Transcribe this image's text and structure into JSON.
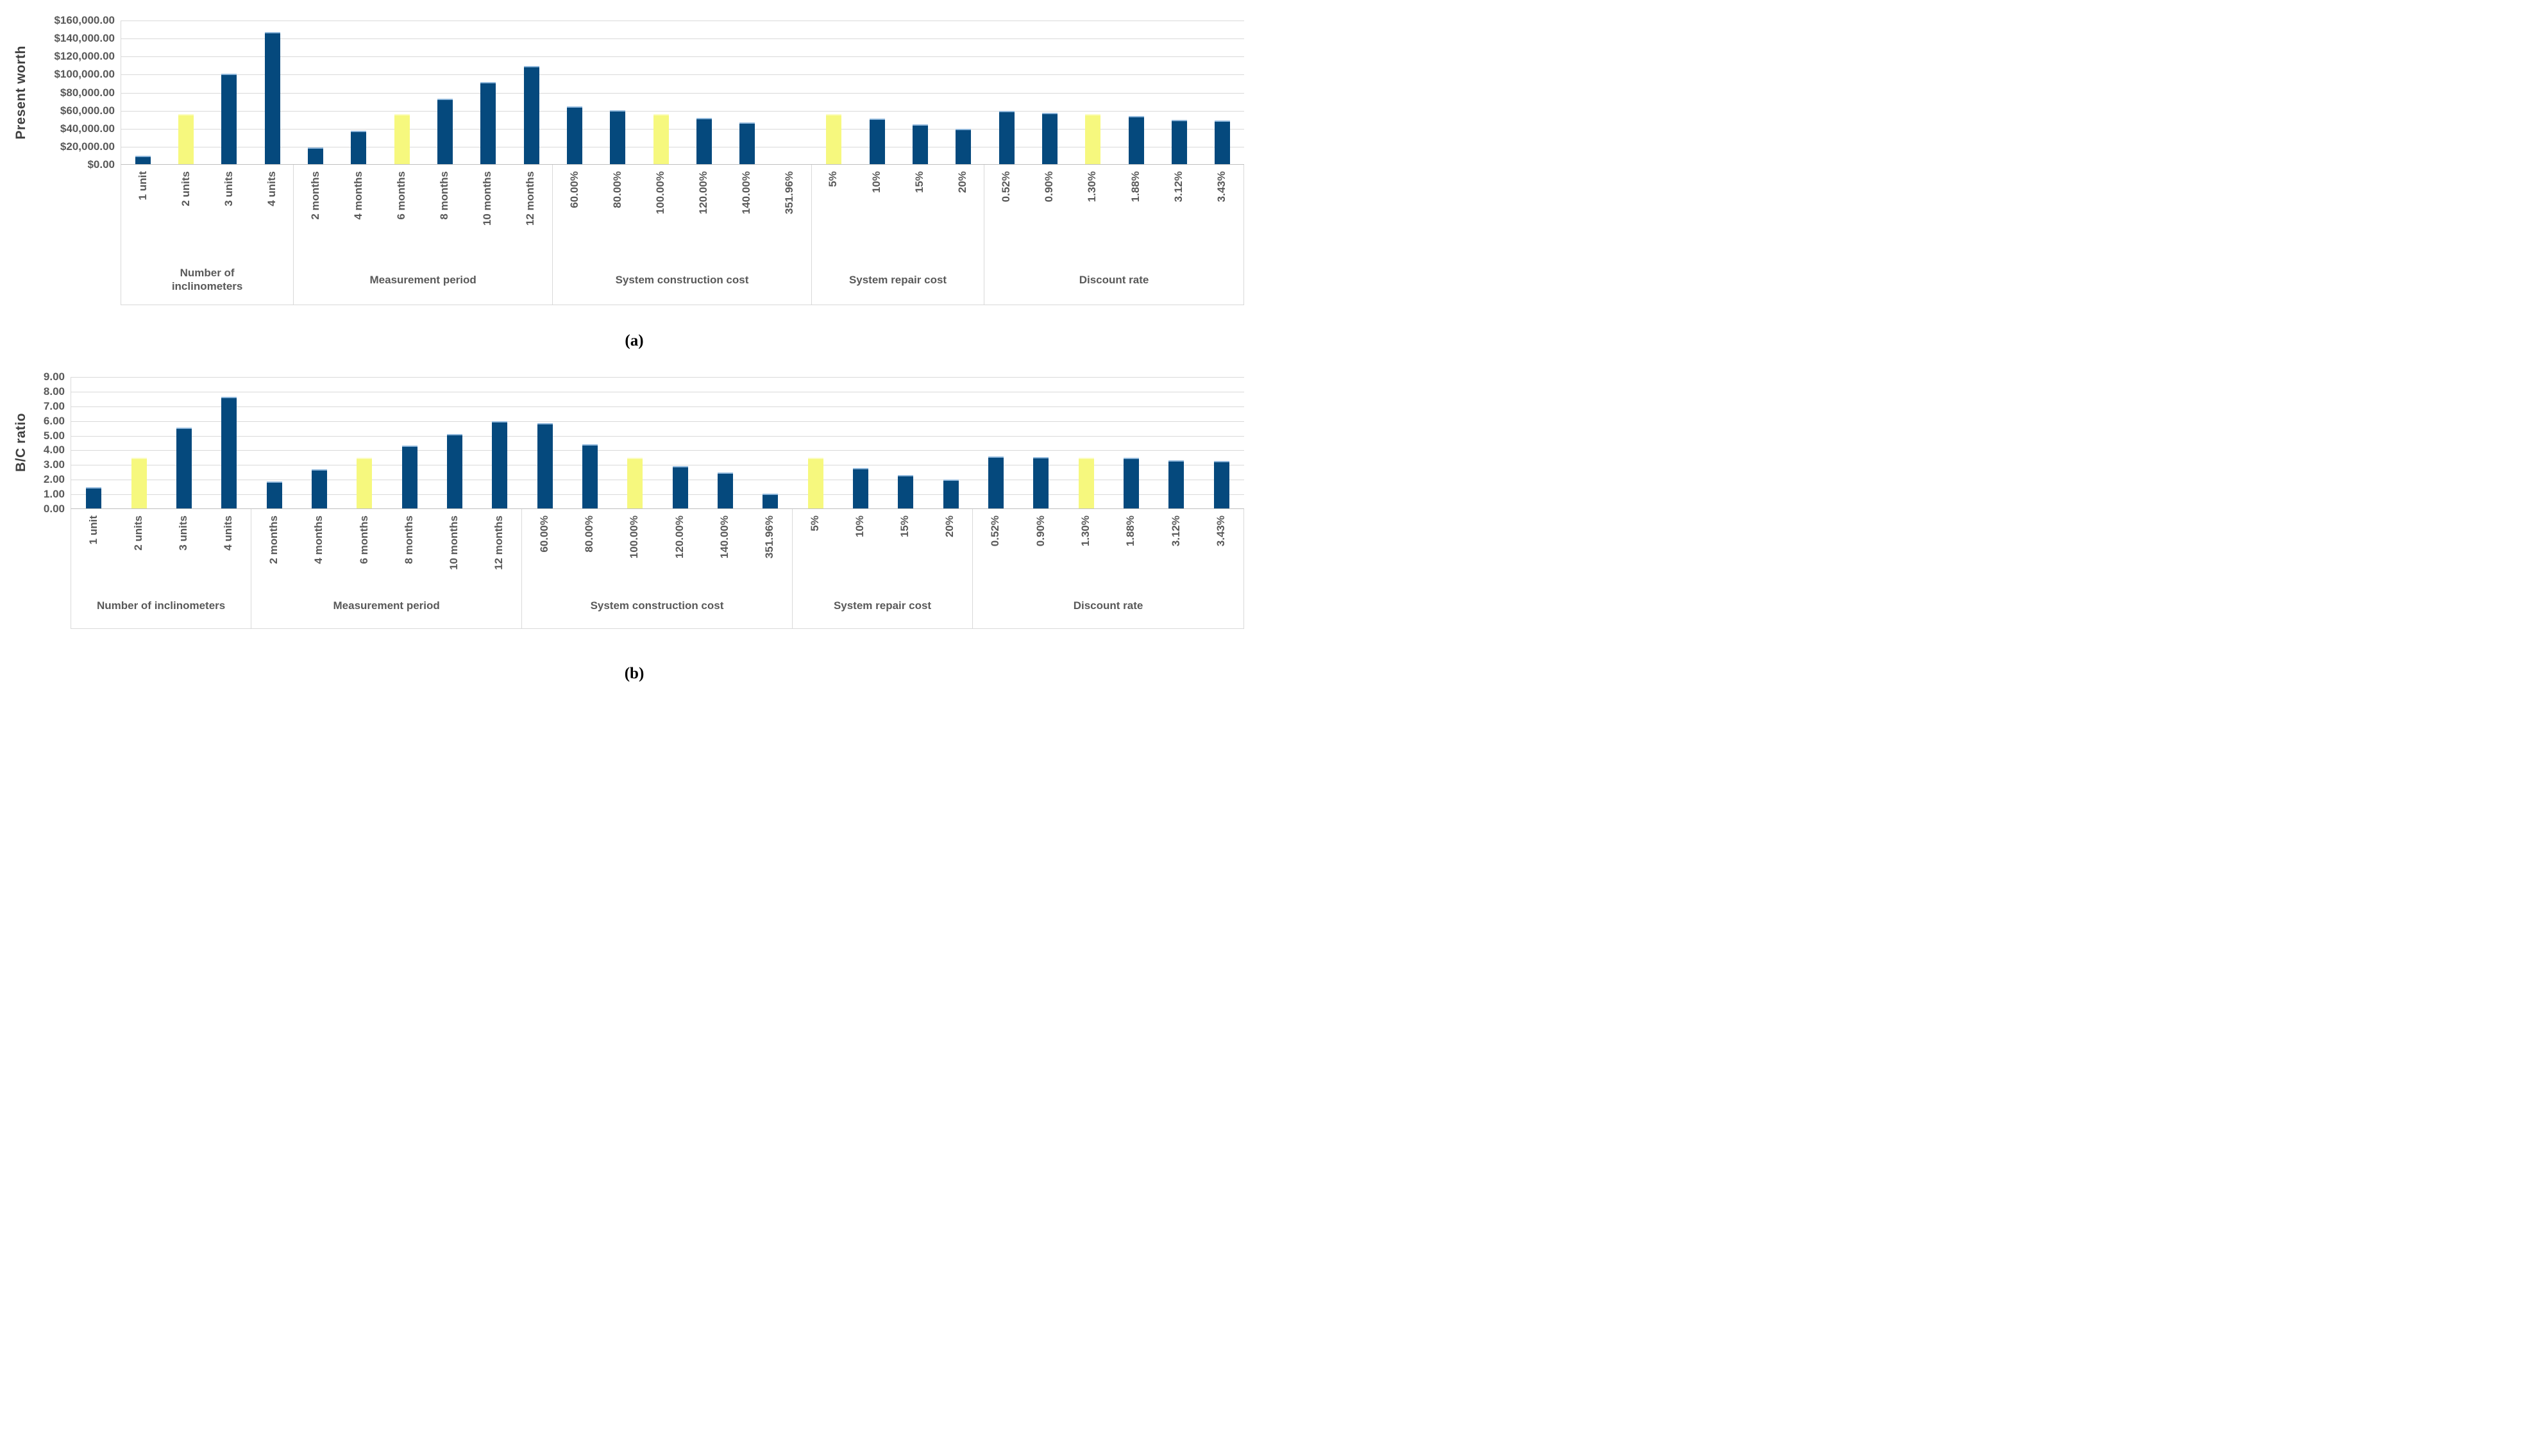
{
  "figure": {
    "captions": {
      "a": "(a)",
      "b": "(b)"
    }
  },
  "colors": {
    "bar_blue": "#05497D",
    "bar_highlight_yellow": "#F6F87E",
    "gridline": "#D9D9D9",
    "axis_line": "#BFBFBF",
    "label_text": "#595959"
  },
  "chart_data": [
    {
      "id": "a",
      "type": "bar",
      "title": "",
      "xlabel": "",
      "ylabel": "Present worth",
      "ylim": [
        0,
        160000
      ],
      "y_ticks": [
        "$160,000.00",
        "$140,000.00",
        "$120,000.00",
        "$100,000.00",
        "$80,000.00",
        "$60,000.00",
        "$40,000.00",
        "$20,000.00",
        "$0.00"
      ],
      "grid": true,
      "legend_position": "none",
      "highlight_meaning": "baseline scenario (yellow bars)",
      "groups": [
        {
          "label_lines": [
            "Number of",
            "inclinometers"
          ],
          "bars": [
            {
              "category": "1 unit",
              "value": 9000,
              "highlight": false
            },
            {
              "category": "2 units",
              "value": 55500,
              "highlight": true
            },
            {
              "category": "3 units",
              "value": 101000,
              "highlight": false
            },
            {
              "category": "4 units",
              "value": 147500,
              "highlight": false
            }
          ]
        },
        {
          "label_lines": [
            "Measurement period"
          ],
          "bars": [
            {
              "category": "2 months",
              "value": 18500,
              "highlight": false
            },
            {
              "category": "4 months",
              "value": 37500,
              "highlight": false
            },
            {
              "category": "6 months",
              "value": 55500,
              "highlight": true
            },
            {
              "category": "8 months",
              "value": 73000,
              "highlight": false
            },
            {
              "category": "10 months",
              "value": 91500,
              "highlight": false
            },
            {
              "category": "12 months",
              "value": 109500,
              "highlight": false
            }
          ]
        },
        {
          "label_lines": [
            "System construction cost"
          ],
          "bars": [
            {
              "category": "60.00%",
              "value": 64000,
              "highlight": false
            },
            {
              "category": "80.00%",
              "value": 60000,
              "highlight": false
            },
            {
              "category": "100.00%",
              "value": 55500,
              "highlight": true
            },
            {
              "category": "120.00%",
              "value": 51500,
              "highlight": false
            },
            {
              "category": "140.00%",
              "value": 46500,
              "highlight": false
            },
            {
              "category": "351.96%",
              "value": 0,
              "highlight": false
            }
          ]
        },
        {
          "label_lines": [
            "System repair cost"
          ],
          "bars": [
            {
              "category": "5%",
              "value": 55500,
              "highlight": true
            },
            {
              "category": "10%",
              "value": 50500,
              "highlight": false
            },
            {
              "category": "15%",
              "value": 44500,
              "highlight": false
            },
            {
              "category": "20%",
              "value": 39500,
              "highlight": false
            }
          ]
        },
        {
          "label_lines": [
            "Discount rate"
          ],
          "bars": [
            {
              "category": "0.52%",
              "value": 59000,
              "highlight": false
            },
            {
              "category": "0.90%",
              "value": 57500,
              "highlight": false
            },
            {
              "category": "1.30%",
              "value": 55500,
              "highlight": true
            },
            {
              "category": "1.88%",
              "value": 53500,
              "highlight": false
            },
            {
              "category": "3.12%",
              "value": 49500,
              "highlight": false
            },
            {
              "category": "3.43%",
              "value": 48500,
              "highlight": false
            }
          ]
        }
      ]
    },
    {
      "id": "b",
      "type": "bar",
      "title": "",
      "xlabel": "",
      "ylabel": "B/C ratio",
      "ylim": [
        0,
        9
      ],
      "y_ticks": [
        "9.00",
        "8.00",
        "7.00",
        "6.00",
        "5.00",
        "4.00",
        "3.00",
        "2.00",
        "1.00",
        "0.00"
      ],
      "grid": true,
      "legend_position": "none",
      "highlight_meaning": "baseline scenario (yellow bars)",
      "groups": [
        {
          "label_lines": [
            "Number of inclinometers"
          ],
          "bars": [
            {
              "category": "1 unit",
              "value": 1.45,
              "highlight": false
            },
            {
              "category": "2 units",
              "value": 3.48,
              "highlight": true
            },
            {
              "category": "3 units",
              "value": 5.55,
              "highlight": false
            },
            {
              "category": "4 units",
              "value": 7.62,
              "highlight": false
            }
          ]
        },
        {
          "label_lines": [
            "Measurement period"
          ],
          "bars": [
            {
              "category": "2 months",
              "value": 1.85,
              "highlight": false
            },
            {
              "category": "4 months",
              "value": 2.68,
              "highlight": false
            },
            {
              "category": "6 months",
              "value": 3.48,
              "highlight": true
            },
            {
              "category": "8 months",
              "value": 4.3,
              "highlight": false
            },
            {
              "category": "10 months",
              "value": 5.1,
              "highlight": false
            },
            {
              "category": "12 months",
              "value": 5.95,
              "highlight": false
            }
          ]
        },
        {
          "label_lines": [
            "System construction cost"
          ],
          "bars": [
            {
              "category": "60.00%",
              "value": 5.82,
              "highlight": false
            },
            {
              "category": "80.00%",
              "value": 4.38,
              "highlight": false
            },
            {
              "category": "100.00%",
              "value": 3.48,
              "highlight": true
            },
            {
              "category": "120.00%",
              "value": 2.88,
              "highlight": false
            },
            {
              "category": "140.00%",
              "value": 2.48,
              "highlight": false
            },
            {
              "category": "351.96%",
              "value": 1.0,
              "highlight": false
            }
          ]
        },
        {
          "label_lines": [
            "System repair cost"
          ],
          "bars": [
            {
              "category": "5%",
              "value": 3.48,
              "highlight": true
            },
            {
              "category": "10%",
              "value": 2.78,
              "highlight": false
            },
            {
              "category": "15%",
              "value": 2.3,
              "highlight": false
            },
            {
              "category": "20%",
              "value": 1.98,
              "highlight": false
            }
          ]
        },
        {
          "label_lines": [
            "Discount rate"
          ],
          "bars": [
            {
              "category": "0.52%",
              "value": 3.55,
              "highlight": false
            },
            {
              "category": "0.90%",
              "value": 3.52,
              "highlight": false
            },
            {
              "category": "1.30%",
              "value": 3.48,
              "highlight": true
            },
            {
              "category": "1.88%",
              "value": 3.45,
              "highlight": false
            },
            {
              "category": "3.12%",
              "value": 3.3,
              "highlight": false
            },
            {
              "category": "3.43%",
              "value": 3.27,
              "highlight": false
            }
          ]
        }
      ]
    }
  ]
}
